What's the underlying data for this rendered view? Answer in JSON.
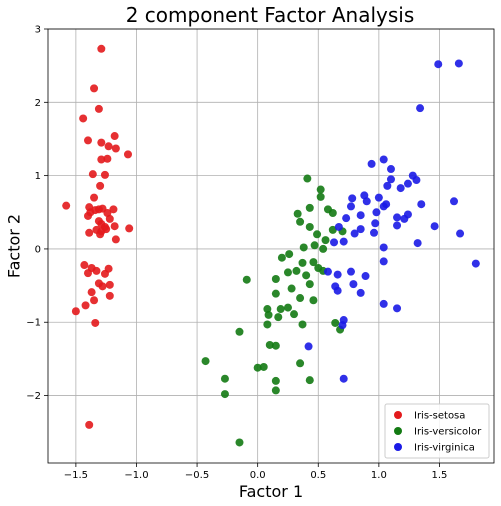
{
  "chart_data": {
    "type": "scatter",
    "title": "2 component Factor Analysis",
    "xlabel": "Factor 1",
    "ylabel": "Factor 2",
    "xlim": [
      -1.73,
      1.95
    ],
    "ylim": [
      -2.92,
      3.0
    ],
    "xticks": [
      -1.5,
      -1.0,
      -0.5,
      0.0,
      0.5,
      1.0,
      1.5
    ],
    "xtick_labels": [
      "−1.5",
      "−1.0",
      "−0.5",
      "0.0",
      "0.5",
      "1.0",
      "1.5"
    ],
    "yticks": [
      -2,
      -1,
      0,
      1,
      2,
      3
    ],
    "ytick_labels": [
      "−2",
      "−1",
      "0",
      "1",
      "2",
      "3"
    ],
    "grid": true,
    "legend_position": "bottom-right",
    "series": [
      {
        "name": "Iris-setosa",
        "color": "#e31a1c",
        "points": [
          [
            -1.29,
            2.73
          ],
          [
            -1.35,
            2.19
          ],
          [
            -1.31,
            1.91
          ],
          [
            -1.44,
            1.78
          ],
          [
            -1.4,
            1.48
          ],
          [
            -1.18,
            1.54
          ],
          [
            -1.29,
            1.45
          ],
          [
            -1.23,
            1.4
          ],
          [
            -1.17,
            1.37
          ],
          [
            -1.07,
            1.29
          ],
          [
            -1.29,
            1.22
          ],
          [
            -1.24,
            1.23
          ],
          [
            -1.36,
            1.02
          ],
          [
            -1.26,
            1.01
          ],
          [
            -1.3,
            0.86
          ],
          [
            -1.35,
            0.7
          ],
          [
            -1.58,
            0.59
          ],
          [
            -1.39,
            0.57
          ],
          [
            -1.31,
            0.54
          ],
          [
            -1.38,
            0.5
          ],
          [
            -1.34,
            0.53
          ],
          [
            -1.28,
            0.55
          ],
          [
            -1.24,
            0.49
          ],
          [
            -1.19,
            0.54
          ],
          [
            -1.4,
            0.45
          ],
          [
            -1.22,
            0.41
          ],
          [
            -1.31,
            0.38
          ],
          [
            -1.29,
            0.34
          ],
          [
            -1.18,
            0.31
          ],
          [
            -1.26,
            0.3
          ],
          [
            -1.33,
            0.26
          ],
          [
            -1.29,
            0.24
          ],
          [
            -1.25,
            0.27
          ],
          [
            -1.06,
            0.28
          ],
          [
            -1.39,
            0.22
          ],
          [
            -1.3,
            0.2
          ],
          [
            -1.17,
            0.13
          ],
          [
            -1.43,
            -0.22
          ],
          [
            -1.37,
            -0.26
          ],
          [
            -1.33,
            -0.3
          ],
          [
            -1.4,
            -0.33
          ],
          [
            -1.23,
            -0.27
          ],
          [
            -1.26,
            -0.34
          ],
          [
            -1.31,
            -0.47
          ],
          [
            -1.28,
            -0.51
          ],
          [
            -1.22,
            -0.49
          ],
          [
            -1.37,
            -0.59
          ],
          [
            -1.35,
            -0.7
          ],
          [
            -1.42,
            -0.77
          ],
          [
            -1.22,
            -0.64
          ],
          [
            -1.5,
            -0.85
          ],
          [
            -1.34,
            -1.01
          ],
          [
            -1.39,
            -2.4
          ]
        ]
      },
      {
        "name": "Iris-versicolor",
        "color": "#137a13",
        "points": [
          [
            0.41,
            0.96
          ],
          [
            0.52,
            0.81
          ],
          [
            0.52,
            0.71
          ],
          [
            0.43,
            0.56
          ],
          [
            0.58,
            0.54
          ],
          [
            0.33,
            0.48
          ],
          [
            0.62,
            0.49
          ],
          [
            0.35,
            0.37
          ],
          [
            0.43,
            0.3
          ],
          [
            0.49,
            0.2
          ],
          [
            0.62,
            0.26
          ],
          [
            0.56,
            0.12
          ],
          [
            0.7,
            0.24
          ],
          [
            0.47,
            0.05
          ],
          [
            0.38,
            0.02
          ],
          [
            0.54,
            0.0
          ],
          [
            0.26,
            -0.07
          ],
          [
            0.2,
            -0.12
          ],
          [
            0.37,
            -0.19
          ],
          [
            0.46,
            -0.18
          ],
          [
            0.5,
            -0.26
          ],
          [
            0.32,
            -0.3
          ],
          [
            0.25,
            -0.32
          ],
          [
            0.4,
            -0.36
          ],
          [
            0.54,
            -0.3
          ],
          [
            0.15,
            -0.41
          ],
          [
            -0.09,
            -0.42
          ],
          [
            0.43,
            -0.48
          ],
          [
            0.28,
            -0.54
          ],
          [
            0.35,
            -0.67
          ],
          [
            0.15,
            -0.61
          ],
          [
            0.46,
            -0.7
          ],
          [
            0.19,
            -0.82
          ],
          [
            0.25,
            -0.8
          ],
          [
            0.08,
            -0.82
          ],
          [
            0.09,
            -0.9
          ],
          [
            0.3,
            -0.89
          ],
          [
            0.17,
            -0.93
          ],
          [
            0.08,
            -1.03
          ],
          [
            0.37,
            -1.03
          ],
          [
            0.64,
            -1.01
          ],
          [
            0.68,
            -1.1
          ],
          [
            -0.15,
            -1.13
          ],
          [
            0.1,
            -1.31
          ],
          [
            0.15,
            -1.32
          ],
          [
            -0.43,
            -1.53
          ],
          [
            0.35,
            -1.56
          ],
          [
            0.05,
            -1.61
          ],
          [
            0.0,
            -1.62
          ],
          [
            -0.27,
            -1.77
          ],
          [
            0.15,
            -1.8
          ],
          [
            0.43,
            -1.79
          ],
          [
            0.15,
            -1.93
          ],
          [
            -0.27,
            -1.98
          ],
          [
            -0.15,
            -2.64
          ]
        ]
      },
      {
        "name": "Iris-virginica",
        "color": "#1a1ae6",
        "points": [
          [
            1.49,
            2.52
          ],
          [
            1.66,
            2.53
          ],
          [
            1.34,
            1.92
          ],
          [
            1.04,
            1.22
          ],
          [
            0.94,
            1.16
          ],
          [
            1.1,
            1.09
          ],
          [
            1.28,
            1.0
          ],
          [
            1.1,
            0.95
          ],
          [
            1.31,
            0.94
          ],
          [
            1.24,
            0.89
          ],
          [
            1.07,
            0.86
          ],
          [
            1.18,
            0.83
          ],
          [
            0.88,
            0.73
          ],
          [
            1.0,
            0.7
          ],
          [
            0.78,
            0.69
          ],
          [
            0.9,
            0.65
          ],
          [
            1.62,
            0.65
          ],
          [
            1.06,
            0.61
          ],
          [
            1.35,
            0.61
          ],
          [
            0.77,
            0.58
          ],
          [
            1.04,
            0.58
          ],
          [
            0.98,
            0.5
          ],
          [
            1.24,
            0.47
          ],
          [
            0.85,
            0.46
          ],
          [
            1.15,
            0.43
          ],
          [
            0.73,
            0.42
          ],
          [
            1.21,
            0.41
          ],
          [
            0.97,
            0.35
          ],
          [
            1.15,
            0.32
          ],
          [
            1.46,
            0.31
          ],
          [
            0.67,
            0.3
          ],
          [
            0.85,
            0.27
          ],
          [
            0.96,
            0.22
          ],
          [
            0.8,
            0.21
          ],
          [
            1.67,
            0.21
          ],
          [
            1.32,
            0.08
          ],
          [
            0.63,
            0.09
          ],
          [
            0.71,
            0.1
          ],
          [
            1.04,
            0.02
          ],
          [
            1.8,
            -0.2
          ],
          [
            1.04,
            -0.17
          ],
          [
            0.58,
            -0.31
          ],
          [
            0.66,
            -0.35
          ],
          [
            0.77,
            -0.31
          ],
          [
            0.89,
            -0.37
          ],
          [
            0.64,
            -0.51
          ],
          [
            0.79,
            -0.48
          ],
          [
            0.66,
            -0.57
          ],
          [
            0.85,
            -0.6
          ],
          [
            1.04,
            -0.75
          ],
          [
            1.15,
            -0.81
          ],
          [
            0.71,
            -0.97
          ],
          [
            0.7,
            -1.04
          ],
          [
            0.42,
            -1.33
          ],
          [
            0.71,
            -1.77
          ]
        ]
      }
    ]
  }
}
